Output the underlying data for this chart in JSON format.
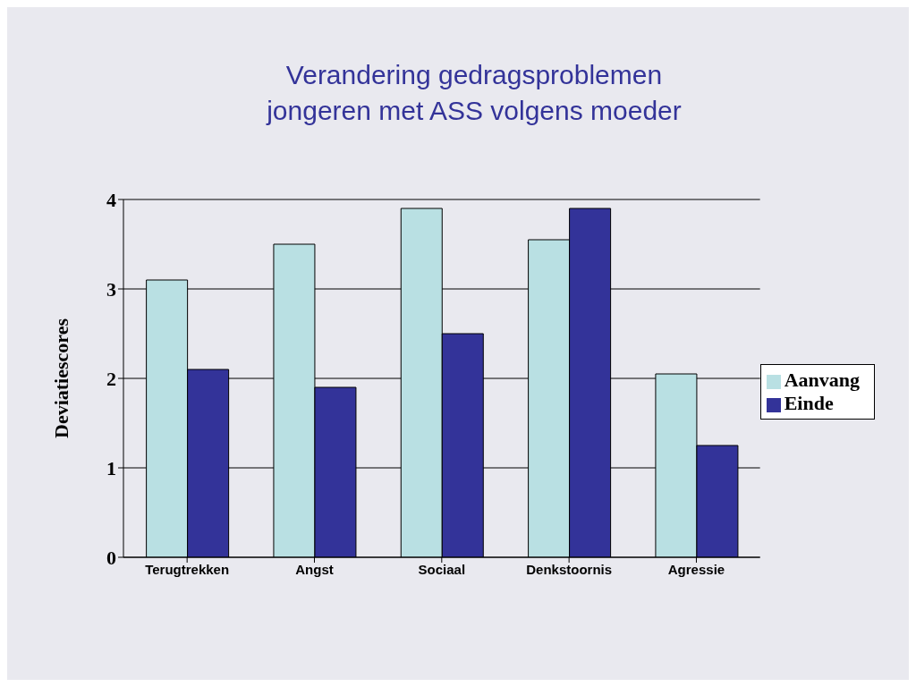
{
  "chart_data": {
    "type": "bar",
    "title": "Verandering gedragsproblemen jongeren met ASS volgens moeder",
    "ylabel": "Deviatiescores",
    "categories": [
      "Terugtrekken",
      "Angst",
      "Sociaal",
      "Denkstoornis",
      "Agressie"
    ],
    "series": [
      {
        "name": "Aanvang",
        "color": "#b9e0e3",
        "values": [
          3.1,
          3.5,
          3.9,
          3.55,
          2.05
        ]
      },
      {
        "name": "Einde",
        "color": "#333399",
        "values": [
          2.1,
          1.9,
          2.5,
          3.9,
          1.25
        ]
      }
    ],
    "ylim": [
      0,
      4
    ],
    "yticks": [
      0,
      1,
      2,
      3,
      4
    ],
    "grid": "y",
    "legend": "right"
  }
}
